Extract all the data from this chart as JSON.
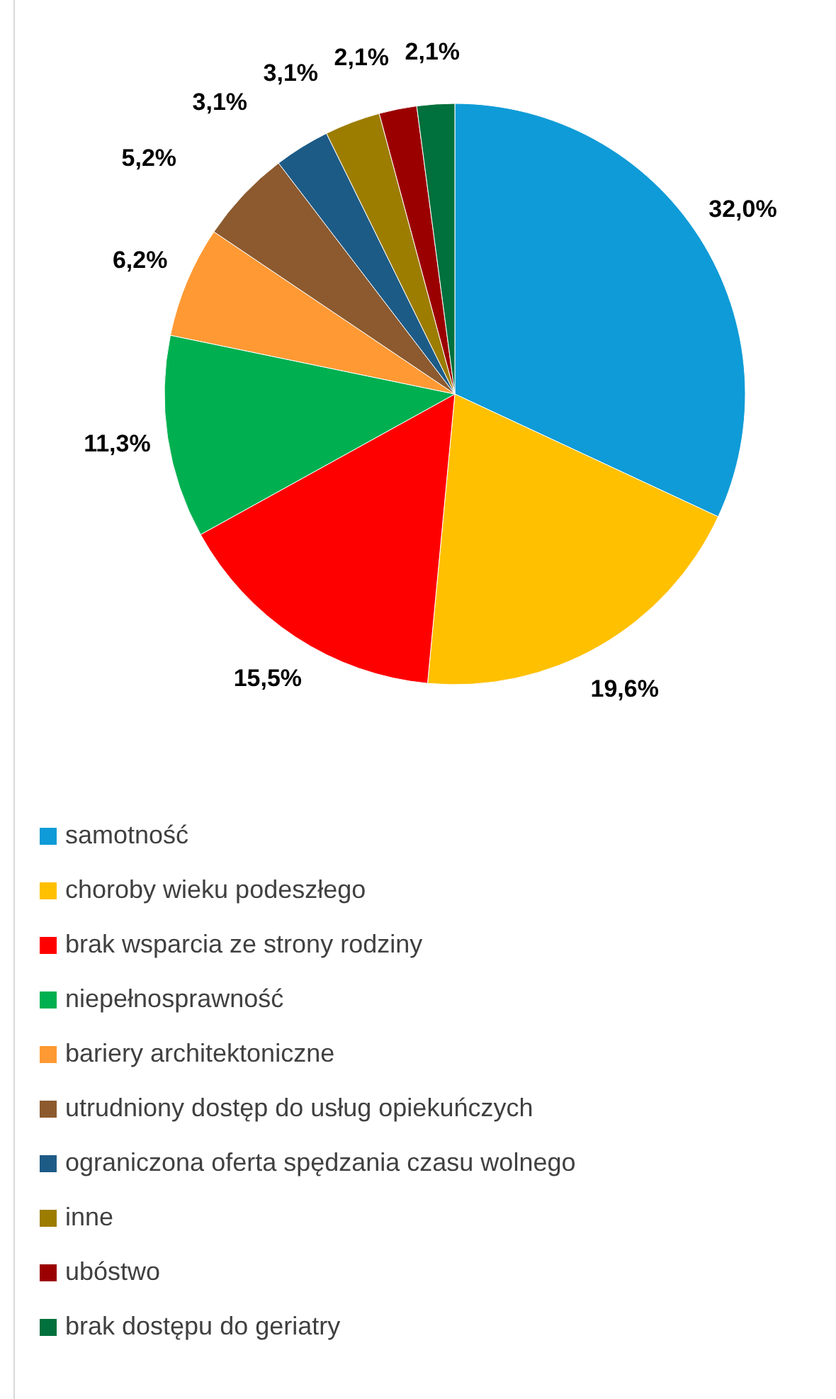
{
  "chart_data": {
    "type": "pie",
    "categories": [
      "samotność",
      "choroby wieku podeszłego",
      "brak wsparcia ze strony rodziny",
      "niepełnosprawność",
      "bariery architektoniczne",
      "utrudniony dostęp do usług opiekuńczych",
      "ograniczona oferta spędzania czasu wolnego",
      "inne",
      "ubóstwo",
      "brak dostępu do geriatry"
    ],
    "values": [
      32.0,
      19.6,
      15.5,
      11.3,
      6.2,
      5.2,
      3.1,
      3.1,
      2.1,
      2.1
    ],
    "value_labels": [
      "32,0%",
      "19,6%",
      "15,5%",
      "11,3%",
      "6,2%",
      "5,2%",
      "3,1%",
      "3,1%",
      "2,1%",
      "2,1%"
    ],
    "colors": [
      "#0f9bd7",
      "#ffc000",
      "#ff0000",
      "#00b050",
      "#ff9933",
      "#8c5a2e",
      "#1d5b87",
      "#9c7d00",
      "#9b0000",
      "#00703c"
    ],
    "legend": "bottom"
  }
}
